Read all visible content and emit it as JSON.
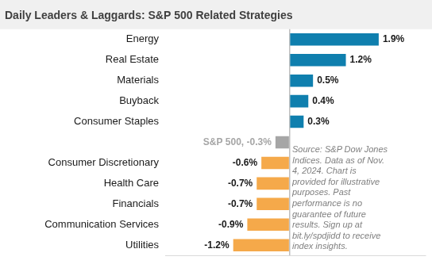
{
  "chart_data": {
    "type": "bar",
    "orientation": "horizontal",
    "title": "Daily Leaders & Laggards: S&P 500 Related Strategies",
    "categories": [
      "Energy",
      "Real Estate",
      "Materials",
      "Buyback",
      "Consumer Staples",
      null,
      "Consumer Discretionary",
      "Health Care",
      "Financials",
      "Communication Services",
      "Utilities"
    ],
    "values": [
      1.9,
      1.2,
      0.5,
      0.4,
      0.3,
      -0.3,
      -0.6,
      -0.7,
      -0.7,
      -0.9,
      -1.2
    ],
    "value_labels": [
      "1.9%",
      "1.2%",
      "0.5%",
      "0.4%",
      "0.3%",
      "S&P 500, -0.3%",
      "-0.6%",
      "-0.7%",
      "-0.7%",
      "-0.9%",
      "-1.2%"
    ],
    "colors": [
      "#0f7fae",
      "#0f7fae",
      "#0f7fae",
      "#0f7fae",
      "#0f7fae",
      "#a6a6a6",
      "#f5a94a",
      "#f5a94a",
      "#f5a94a",
      "#f5a94a",
      "#f5a94a"
    ],
    "xlim": [
      -2.65,
      2.9
    ],
    "xticks": [
      0
    ],
    "grid": true,
    "tick_labels": "y",
    "data_labels": true,
    "annotation": "Source: S&P Dow Jones\nIndices. Data as of Nov.\n4, 2024. Chart is\nprovided for illustrative\npurposes. Past\nperformance is no\nguarantee of future\nresults. Sign up at\nbit.ly/spdjidd to receive\nindex insights."
  }
}
